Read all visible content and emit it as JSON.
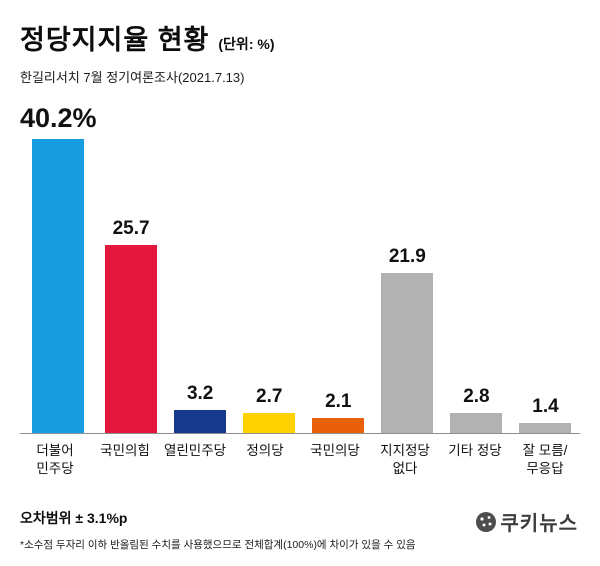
{
  "header": {
    "title": "정당지지율 현황",
    "unit": "(단위: %)",
    "subtitle": "한길리서치 7월 정기여론조사(2021.7.13)"
  },
  "footer": {
    "margin_of_error": "오차범위 ± 3.1%p",
    "footnote": "*소수점 두자리 이하 반올림된 수치를 사용했으므로 전체합계(100%)에 차이가 있을 수 있음",
    "logo_text": "쿠키뉴스"
  },
  "chart_data": {
    "type": "bar",
    "title": "정당지지율 현황",
    "unit": "%",
    "categories": [
      "더불어\n민주당",
      "국민의힘",
      "열린민주당",
      "정의당",
      "국민의당",
      "지지정당\n없다",
      "기타 정당",
      "잘 모름/\n무응답"
    ],
    "values": [
      40.2,
      25.7,
      3.2,
      2.7,
      2.1,
      21.9,
      2.8,
      1.4
    ],
    "value_labels": [
      "40.2%",
      "25.7",
      "3.2",
      "2.7",
      "2.1",
      "21.9",
      "2.8",
      "1.4"
    ],
    "colors": [
      "#189de0",
      "#e4173c",
      "#17398c",
      "#ffd200",
      "#e8610a",
      "#b2b2b2",
      "#b2b2b2",
      "#b2b2b2"
    ],
    "ylim": [
      0,
      45
    ],
    "grid": false,
    "legend": "none",
    "source": "한길리서치 7월 정기여론조사(2021.7.13)"
  }
}
